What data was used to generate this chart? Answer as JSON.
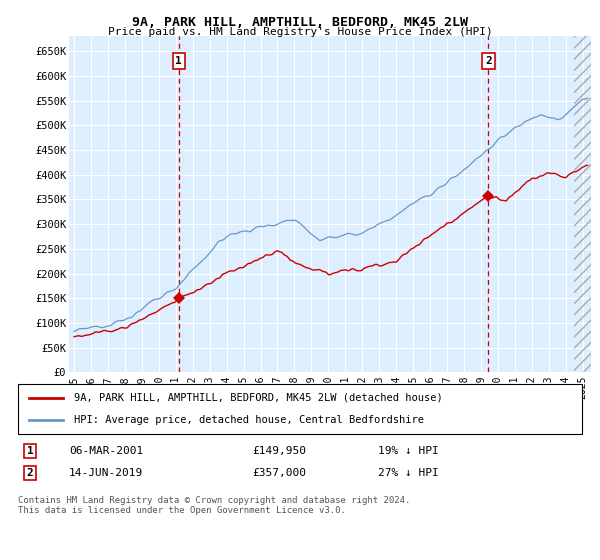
{
  "title1": "9A, PARK HILL, AMPTHILL, BEDFORD, MK45 2LW",
  "title2": "Price paid vs. HM Land Registry's House Price Index (HPI)",
  "ylabel_ticks": [
    "£0",
    "£50K",
    "£100K",
    "£150K",
    "£200K",
    "£250K",
    "£300K",
    "£350K",
    "£400K",
    "£450K",
    "£500K",
    "£550K",
    "£600K",
    "£650K"
  ],
  "ylim": [
    0,
    680000
  ],
  "yticks": [
    0,
    50000,
    100000,
    150000,
    200000,
    250000,
    300000,
    350000,
    400000,
    450000,
    500000,
    550000,
    600000,
    650000
  ],
  "xmin": 1994.7,
  "xmax": 2025.5,
  "sale1_x": 2001.18,
  "sale1_y": 149950,
  "sale1_label": "1",
  "sale1_date": "06-MAR-2001",
  "sale1_price": "£149,950",
  "sale1_hpi": "19% ↓ HPI",
  "sale2_x": 2019.45,
  "sale2_y": 357000,
  "sale2_label": "2",
  "sale2_date": "14-JUN-2019",
  "sale2_price": "£357,000",
  "sale2_hpi": "27% ↓ HPI",
  "legend_line1": "9A, PARK HILL, AMPTHILL, BEDFORD, MK45 2LW (detached house)",
  "legend_line2": "HPI: Average price, detached house, Central Bedfordshire",
  "footnote": "Contains HM Land Registry data © Crown copyright and database right 2024.\nThis data is licensed under the Open Government Licence v3.0.",
  "line_color_red": "#cc0000",
  "line_color_blue": "#6699cc",
  "bg_color": "#ddeeff",
  "grid_color": "#ffffff",
  "box_color": "#cc0000"
}
